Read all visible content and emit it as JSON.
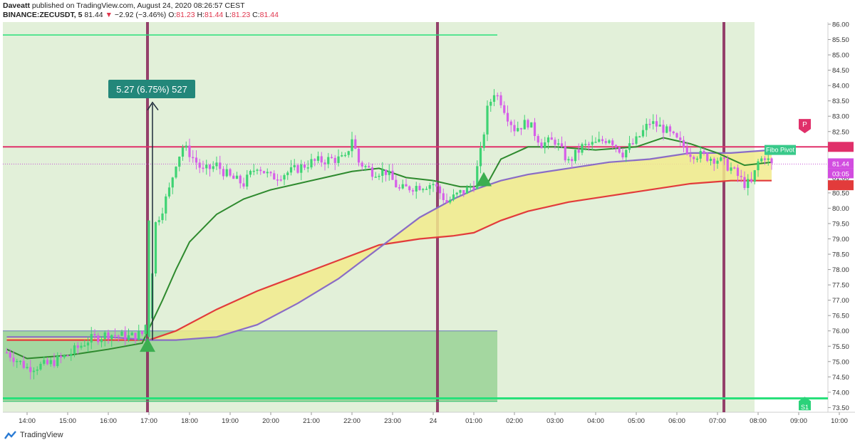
{
  "header": {
    "author": "Daveatt",
    "published_text": "published on TradingView.com, August 24, 2020 08:26:57 CEST",
    "symbol": "BINANCE:ZECUSDT, 5",
    "last": "81.44",
    "change_arrow": "▼",
    "change": "−2.92 (−3.46%)",
    "o_label": "O:",
    "o_value": "81.23",
    "h_label": "H:",
    "h_value": "81.44",
    "l_label": "L:",
    "l_value": "81.23",
    "c_label": "C:",
    "c_value": "81.44"
  },
  "footer": {
    "brand": "TradingView"
  },
  "colors": {
    "up": "#3fd373",
    "down": "#d65fe8",
    "bg_session": "#e2f0d9",
    "ema_red": "#e23b3b",
    "ema_purple": "#8a6cc6",
    "fill_yellow": "#f2eb8c",
    "ema_green": "#2e8a2e",
    "pivot": "#e0306a",
    "support": "#28e07a",
    "vline": "#8c2d5e",
    "measure": "#23877a",
    "box": "#8fcf8c"
  },
  "chart_data": {
    "type": "candlestick",
    "y_axis": {
      "ticks": [
        73.5,
        74,
        74.5,
        75,
        75.5,
        76,
        76.5,
        77,
        77.5,
        78,
        78.5,
        79,
        79.5,
        80,
        80.5,
        81,
        81.5,
        82,
        82.5,
        83,
        83.5,
        84,
        84.5,
        85,
        85.5,
        86
      ],
      "ylim": [
        73.25,
        86.2
      ],
      "position": "right"
    },
    "x_axis": {
      "ticks": [
        "14:00",
        "15:00",
        "16:00",
        "17:00",
        "18:00",
        "19:00",
        "20:00",
        "21:00",
        "22:00",
        "23:00",
        "24",
        "01:00",
        "02:00",
        "03:00",
        "04:00",
        "05:00",
        "06:00",
        "07:00",
        "08:00",
        "09:00",
        "10:00"
      ]
    },
    "last_price_label": "81.44",
    "countdown_label": "03:05",
    "levels": [
      {
        "name": "Fibo Pivot",
        "badge": "P",
        "value": 82.0
      },
      {
        "name": "S1",
        "badge": "S1",
        "value": 73.8
      }
    ],
    "measure_label": "5.27 (6.75%) 527",
    "candles_hourly_anchor": [
      [
        "13:30",
        75.3
      ],
      [
        "14:00",
        74.8
      ],
      [
        "14:30",
        74.9
      ],
      [
        "15:00",
        75.2
      ],
      [
        "15:30",
        75.7
      ],
      [
        "16:00",
        75.9
      ],
      [
        "16:30",
        75.8
      ],
      [
        "16:50",
        75.9
      ],
      [
        "17:00",
        76.5
      ],
      [
        "17:10",
        79.5
      ],
      [
        "17:20",
        80.0
      ],
      [
        "17:30",
        80.6
      ],
      [
        "17:40",
        81.5
      ],
      [
        "17:50",
        82.0
      ],
      [
        "18:00",
        81.8
      ],
      [
        "18:20",
        81.2
      ],
      [
        "18:40",
        81.4
      ],
      [
        "19:00",
        81.0
      ],
      [
        "19:20",
        80.8
      ],
      [
        "19:40",
        81.4
      ],
      [
        "20:00",
        81.0
      ],
      [
        "20:30",
        81.2
      ],
      [
        "21:00",
        81.5
      ],
      [
        "21:30",
        81.6
      ],
      [
        "21:50",
        81.6
      ],
      [
        "22:00",
        82.3
      ],
      [
        "22:10",
        81.5
      ],
      [
        "22:30",
        81.2
      ],
      [
        "22:50",
        81.2
      ],
      [
        "23:10",
        80.6
      ],
      [
        "23:30",
        80.7
      ],
      [
        "24:00",
        80.8
      ],
      [
        "24:20",
        80.2
      ],
      [
        "24:40",
        80.5
      ],
      [
        "24:50",
        80.6
      ],
      [
        "00:50",
        80.6
      ],
      [
        "01:00",
        80.8
      ],
      [
        "01:10",
        81.8
      ],
      [
        "01:20",
        83.2
      ],
      [
        "01:30",
        83.8
      ],
      [
        "01:40",
        83.5
      ],
      [
        "01:50",
        83.0
      ],
      [
        "02:00",
        82.6
      ],
      [
        "02:20",
        82.8
      ],
      [
        "02:40",
        82.1
      ],
      [
        "03:00",
        82.2
      ],
      [
        "03:20",
        81.5
      ],
      [
        "03:40",
        82.0
      ],
      [
        "04:00",
        82.1
      ],
      [
        "04:20",
        82.3
      ],
      [
        "04:40",
        81.8
      ],
      [
        "05:00",
        82.2
      ],
      [
        "05:20",
        82.8
      ],
      [
        "05:40",
        82.6
      ],
      [
        "06:00",
        82.2
      ],
      [
        "06:20",
        81.8
      ],
      [
        "06:40",
        81.7
      ],
      [
        "07:00",
        81.6
      ],
      [
        "07:20",
        81.3
      ],
      [
        "07:40",
        80.8
      ],
      [
        "07:50",
        80.8
      ],
      [
        "08:00",
        81.5
      ],
      [
        "08:10",
        81.7
      ],
      [
        "08:20",
        81.4
      ]
    ],
    "overlays": [
      {
        "name": "EMA green",
        "points": [
          [
            "13:30",
            75.4
          ],
          [
            "14:00",
            75.1
          ],
          [
            "15:00",
            75.2
          ],
          [
            "16:00",
            75.4
          ],
          [
            "16:50",
            75.6
          ],
          [
            "17:20",
            77.0
          ],
          [
            "17:40",
            78.0
          ],
          [
            "18:00",
            78.9
          ],
          [
            "18:40",
            79.8
          ],
          [
            "19:20",
            80.3
          ],
          [
            "20:00",
            80.6
          ],
          [
            "20:40",
            80.8
          ],
          [
            "21:20",
            81.0
          ],
          [
            "22:00",
            81.2
          ],
          [
            "22:40",
            81.3
          ],
          [
            "23:20",
            81.0
          ],
          [
            "24:00",
            80.9
          ],
          [
            "24:40",
            80.7
          ],
          [
            "01:00",
            80.7
          ],
          [
            "01:20",
            80.8
          ],
          [
            "01:40",
            81.6
          ],
          [
            "02:20",
            82.0
          ],
          [
            "03:00",
            82.0
          ],
          [
            "04:00",
            81.9
          ],
          [
            "05:00",
            82.0
          ],
          [
            "05:40",
            82.3
          ],
          [
            "06:20",
            82.1
          ],
          [
            "07:00",
            81.8
          ],
          [
            "07:40",
            81.4
          ],
          [
            "08:20",
            81.5
          ]
        ]
      },
      {
        "name": "EMA purple",
        "points": [
          [
            "13:30",
            75.8
          ],
          [
            "16:00",
            75.8
          ],
          [
            "17:00",
            75.7
          ],
          [
            "17:40",
            75.7
          ],
          [
            "18:40",
            75.8
          ],
          [
            "19:40",
            76.2
          ],
          [
            "20:40",
            76.9
          ],
          [
            "21:40",
            77.7
          ],
          [
            "22:40",
            78.7
          ],
          [
            "23:40",
            79.7
          ],
          [
            "24:30",
            80.3
          ],
          [
            "01:00",
            80.6
          ],
          [
            "01:40",
            80.9
          ],
          [
            "02:20",
            81.1
          ],
          [
            "03:20",
            81.3
          ],
          [
            "04:20",
            81.5
          ],
          [
            "05:20",
            81.6
          ],
          [
            "06:20",
            81.8
          ],
          [
            "07:20",
            81.8
          ],
          [
            "08:20",
            81.9
          ]
        ]
      },
      {
        "name": "EMA red",
        "points": [
          [
            "13:30",
            75.7
          ],
          [
            "16:00",
            75.7
          ],
          [
            "17:00",
            75.7
          ],
          [
            "17:40",
            76.0
          ],
          [
            "18:40",
            76.7
          ],
          [
            "19:40",
            77.3
          ],
          [
            "20:40",
            77.8
          ],
          [
            "21:40",
            78.3
          ],
          [
            "22:40",
            78.8
          ],
          [
            "23:40",
            79.0
          ],
          [
            "24:30",
            79.1
          ],
          [
            "01:00",
            79.2
          ],
          [
            "01:40",
            79.6
          ],
          [
            "02:20",
            79.9
          ],
          [
            "03:20",
            80.2
          ],
          [
            "04:20",
            80.4
          ],
          [
            "05:20",
            80.6
          ],
          [
            "06:20",
            80.8
          ],
          [
            "07:20",
            80.9
          ],
          [
            "08:20",
            80.9
          ]
        ]
      }
    ]
  }
}
